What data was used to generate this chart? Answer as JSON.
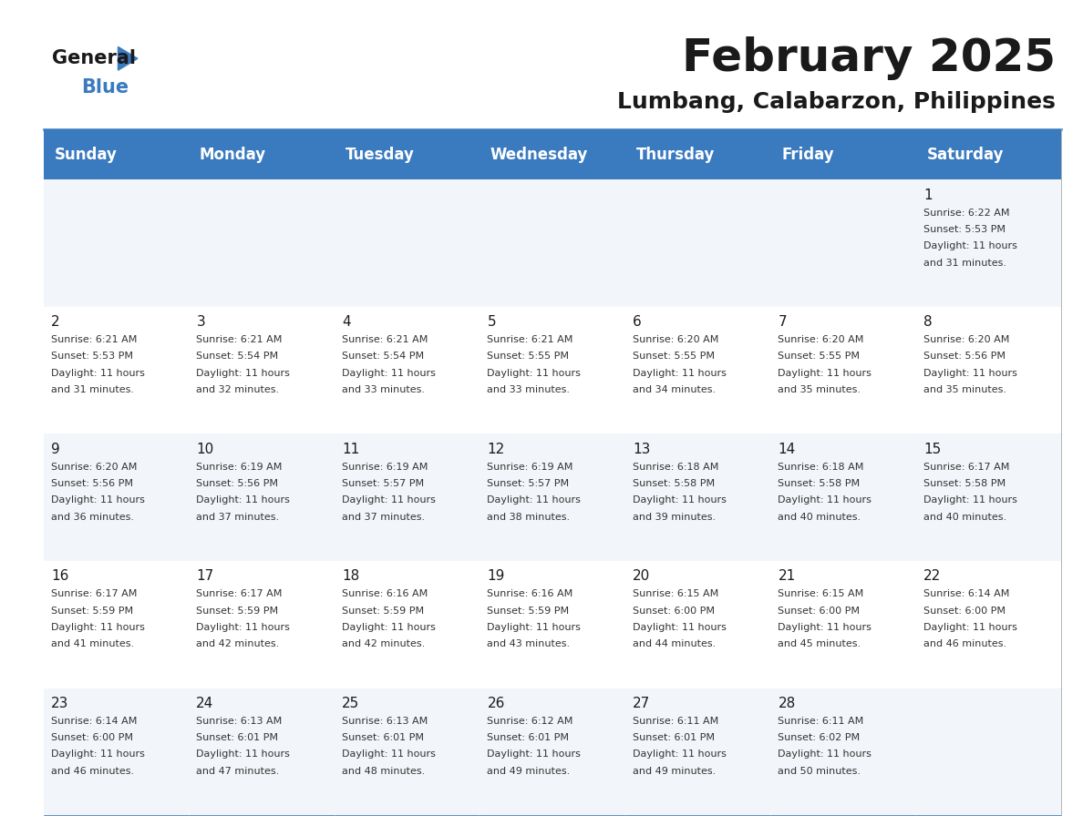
{
  "title": "February 2025",
  "subtitle": "Lumbang, Calabarzon, Philippines",
  "header_bg": "#3a7abf",
  "header_text_color": "#ffffff",
  "days_of_week": [
    "Sunday",
    "Monday",
    "Tuesday",
    "Wednesday",
    "Thursday",
    "Friday",
    "Saturday"
  ],
  "cell_border_color": "#3a7abf",
  "calendar_data": [
    [
      null,
      null,
      null,
      null,
      null,
      null,
      {
        "day": 1,
        "sunrise": "6:22 AM",
        "sunset": "5:53 PM",
        "daylight": "11 hours and 31 minutes."
      }
    ],
    [
      {
        "day": 2,
        "sunrise": "6:21 AM",
        "sunset": "5:53 PM",
        "daylight": "11 hours and 31 minutes."
      },
      {
        "day": 3,
        "sunrise": "6:21 AM",
        "sunset": "5:54 PM",
        "daylight": "11 hours and 32 minutes."
      },
      {
        "day": 4,
        "sunrise": "6:21 AM",
        "sunset": "5:54 PM",
        "daylight": "11 hours and 33 minutes."
      },
      {
        "day": 5,
        "sunrise": "6:21 AM",
        "sunset": "5:55 PM",
        "daylight": "11 hours and 33 minutes."
      },
      {
        "day": 6,
        "sunrise": "6:20 AM",
        "sunset": "5:55 PM",
        "daylight": "11 hours and 34 minutes."
      },
      {
        "day": 7,
        "sunrise": "6:20 AM",
        "sunset": "5:55 PM",
        "daylight": "11 hours and 35 minutes."
      },
      {
        "day": 8,
        "sunrise": "6:20 AM",
        "sunset": "5:56 PM",
        "daylight": "11 hours and 35 minutes."
      }
    ],
    [
      {
        "day": 9,
        "sunrise": "6:20 AM",
        "sunset": "5:56 PM",
        "daylight": "11 hours and 36 minutes."
      },
      {
        "day": 10,
        "sunrise": "6:19 AM",
        "sunset": "5:56 PM",
        "daylight": "11 hours and 37 minutes."
      },
      {
        "day": 11,
        "sunrise": "6:19 AM",
        "sunset": "5:57 PM",
        "daylight": "11 hours and 37 minutes."
      },
      {
        "day": 12,
        "sunrise": "6:19 AM",
        "sunset": "5:57 PM",
        "daylight": "11 hours and 38 minutes."
      },
      {
        "day": 13,
        "sunrise": "6:18 AM",
        "sunset": "5:58 PM",
        "daylight": "11 hours and 39 minutes."
      },
      {
        "day": 14,
        "sunrise": "6:18 AM",
        "sunset": "5:58 PM",
        "daylight": "11 hours and 40 minutes."
      },
      {
        "day": 15,
        "sunrise": "6:17 AM",
        "sunset": "5:58 PM",
        "daylight": "11 hours and 40 minutes."
      }
    ],
    [
      {
        "day": 16,
        "sunrise": "6:17 AM",
        "sunset": "5:59 PM",
        "daylight": "11 hours and 41 minutes."
      },
      {
        "day": 17,
        "sunrise": "6:17 AM",
        "sunset": "5:59 PM",
        "daylight": "11 hours and 42 minutes."
      },
      {
        "day": 18,
        "sunrise": "6:16 AM",
        "sunset": "5:59 PM",
        "daylight": "11 hours and 42 minutes."
      },
      {
        "day": 19,
        "sunrise": "6:16 AM",
        "sunset": "5:59 PM",
        "daylight": "11 hours and 43 minutes."
      },
      {
        "day": 20,
        "sunrise": "6:15 AM",
        "sunset": "6:00 PM",
        "daylight": "11 hours and 44 minutes."
      },
      {
        "day": 21,
        "sunrise": "6:15 AM",
        "sunset": "6:00 PM",
        "daylight": "11 hours and 45 minutes."
      },
      {
        "day": 22,
        "sunrise": "6:14 AM",
        "sunset": "6:00 PM",
        "daylight": "11 hours and 46 minutes."
      }
    ],
    [
      {
        "day": 23,
        "sunrise": "6:14 AM",
        "sunset": "6:00 PM",
        "daylight": "11 hours and 46 minutes."
      },
      {
        "day": 24,
        "sunrise": "6:13 AM",
        "sunset": "6:01 PM",
        "daylight": "11 hours and 47 minutes."
      },
      {
        "day": 25,
        "sunrise": "6:13 AM",
        "sunset": "6:01 PM",
        "daylight": "11 hours and 48 minutes."
      },
      {
        "day": 26,
        "sunrise": "6:12 AM",
        "sunset": "6:01 PM",
        "daylight": "11 hours and 49 minutes."
      },
      {
        "day": 27,
        "sunrise": "6:11 AM",
        "sunset": "6:01 PM",
        "daylight": "11 hours and 49 minutes."
      },
      {
        "day": 28,
        "sunrise": "6:11 AM",
        "sunset": "6:02 PM",
        "daylight": "11 hours and 50 minutes."
      },
      null
    ]
  ],
  "logo_general_color": "#1a1a1a",
  "logo_blue_color": "#3a7abf",
  "logo_triangle_color": "#3a7abf",
  "title_fontsize": 36,
  "subtitle_fontsize": 18,
  "header_fontsize": 12,
  "day_number_fontsize": 11,
  "cell_text_fontsize": 8
}
